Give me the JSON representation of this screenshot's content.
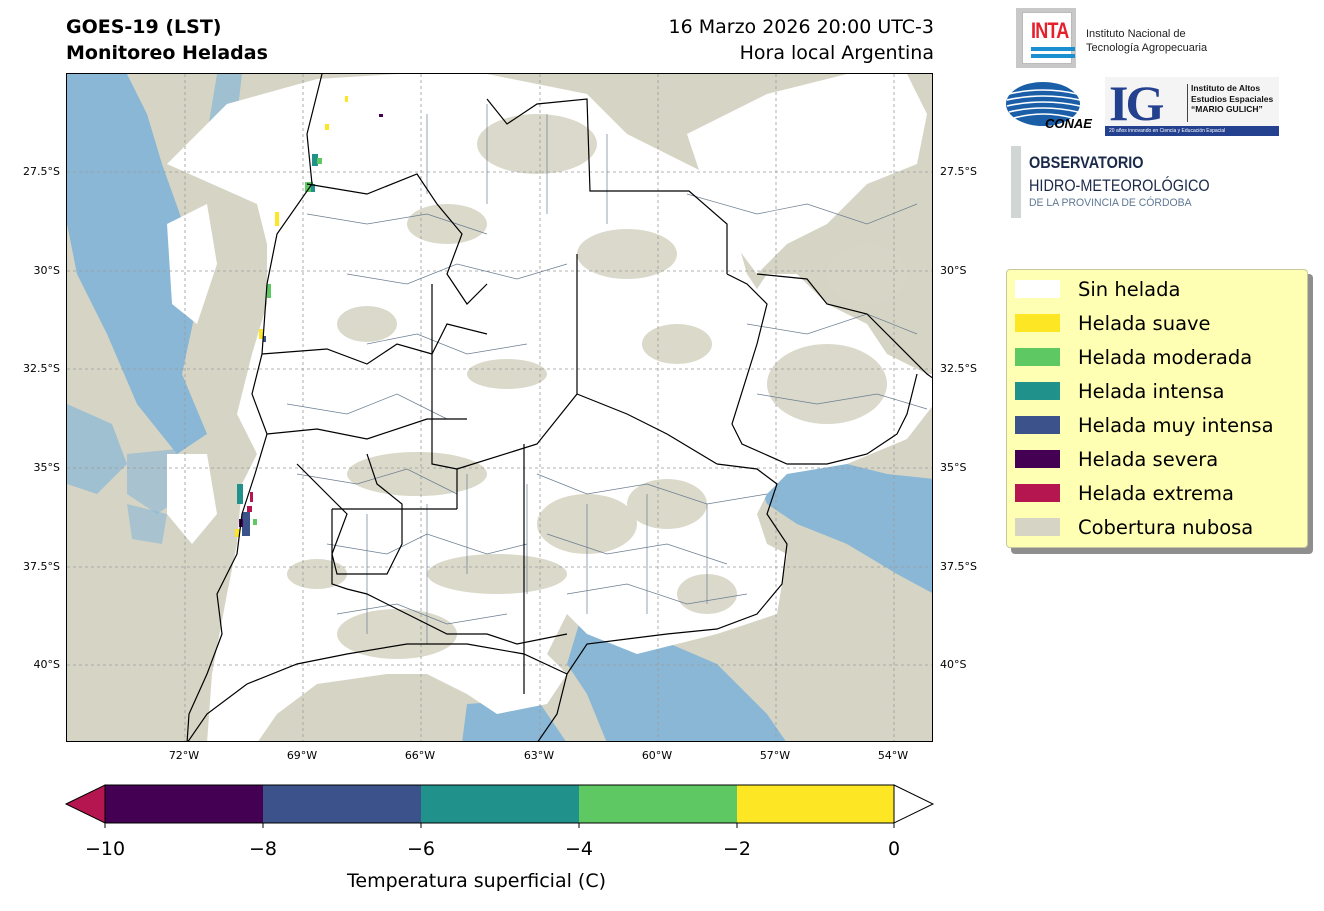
{
  "header": {
    "title_line1": "GOES-19 (LST)",
    "title_line2": "Monitoreo Heladas",
    "date_line": "16 Marzo 2026 20:00 UTC-3",
    "timezone_line": "Hora local Argentina"
  },
  "map": {
    "lat_labels": [
      "27.5°S",
      "30°S",
      "32.5°S",
      "35°S",
      "37.5°S",
      "40°S"
    ],
    "lon_labels": [
      "72°W",
      "69°W",
      "66°W",
      "63°W",
      "60°W",
      "57°W",
      "54°W"
    ],
    "colors": {
      "cloud": "#d6d5c5",
      "no_frost": "#ffffff",
      "cold_blue": "#7bb1d8",
      "boundary": "#000000",
      "department_lines": "#6b7d8f"
    }
  },
  "logos": {
    "inta_word": "INTA",
    "inta_line1": "Instituto Nacional de",
    "inta_line2": "Tecnología Agropecuaria",
    "conae_word": "CONAE",
    "ig_letters": "IG",
    "ig_line1": "Instituto de Altos",
    "ig_line2": "Estudios Espaciales",
    "ig_line3": "“MARIO GULICH”",
    "ig_band": "20 años innovando en Ciencia y Educación Espacial",
    "obs_line1": "OBSERVATORIO",
    "obs_line2": "HIDRO-METEOROLÓGICO",
    "obs_line3": "DE LA PROVINCIA DE CÓRDOBA"
  },
  "legend": {
    "items": [
      {
        "label": "Sin helada",
        "color": "#ffffff"
      },
      {
        "label": "Helada suave",
        "color": "#fde725"
      },
      {
        "label": "Helada moderada",
        "color": "#5ec962"
      },
      {
        "label": "Helada intensa",
        "color": "#21918c"
      },
      {
        "label": "Helada muy intensa",
        "color": "#3b528b"
      },
      {
        "label": "Helada severa",
        "color": "#440154"
      },
      {
        "label": "Helada extrema",
        "color": "#b5164f"
      },
      {
        "label": "Cobertura nubosa",
        "color": "#d6d5c5"
      }
    ]
  },
  "colorbar": {
    "label": "Temperatura superficial (C)",
    "ticks": [
      "−10",
      "−8",
      "−6",
      "−4",
      "−2",
      "0"
    ],
    "under_color": "#b5164f",
    "over_color": "#ffffff",
    "segments": [
      {
        "from": -10,
        "to": -8,
        "color": "#440154"
      },
      {
        "from": -8,
        "to": -6,
        "color": "#3b528b"
      },
      {
        "from": -6,
        "to": -4,
        "color": "#21918c"
      },
      {
        "from": -4,
        "to": -2,
        "color": "#5ec962"
      },
      {
        "from": -2,
        "to": 0,
        "color": "#fde725"
      }
    ]
  }
}
